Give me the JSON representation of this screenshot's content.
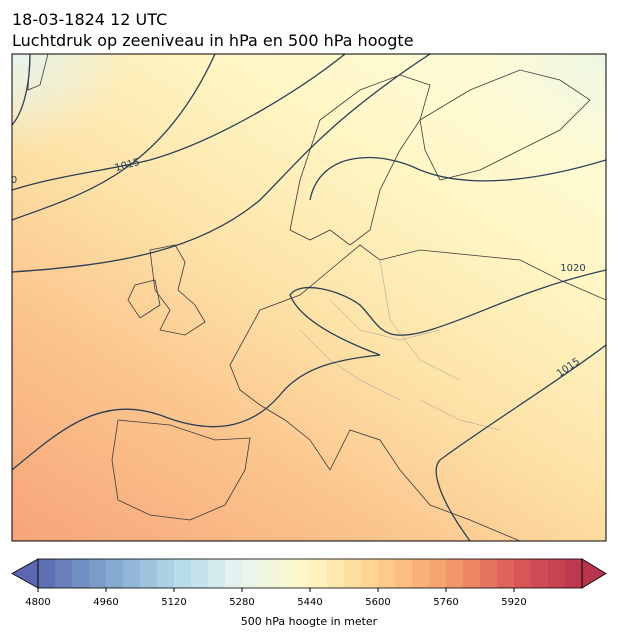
{
  "header": {
    "title": "18-03-1824 12 UTC",
    "subtitle": "Luchtdruk op zeeniveau in hPa en 500 hPa hoogte"
  },
  "map": {
    "contour_labels": [
      "1015",
      "1020",
      "1015",
      "0"
    ]
  },
  "colorbar": {
    "label": "500 hPa hoogte in meter",
    "lim": [
      4800,
      6080
    ],
    "step": 40,
    "ticks": [
      4800,
      4960,
      5120,
      5280,
      5440,
      5600,
      5760,
      5920
    ],
    "colors": [
      "#5b68b0",
      "#7fa3cc",
      "#b2d8e8",
      "#e8f6f1",
      "#fff7c2",
      "#fdd08f",
      "#f59f6d",
      "#dc5b58",
      "#b8344e"
    ]
  }
}
